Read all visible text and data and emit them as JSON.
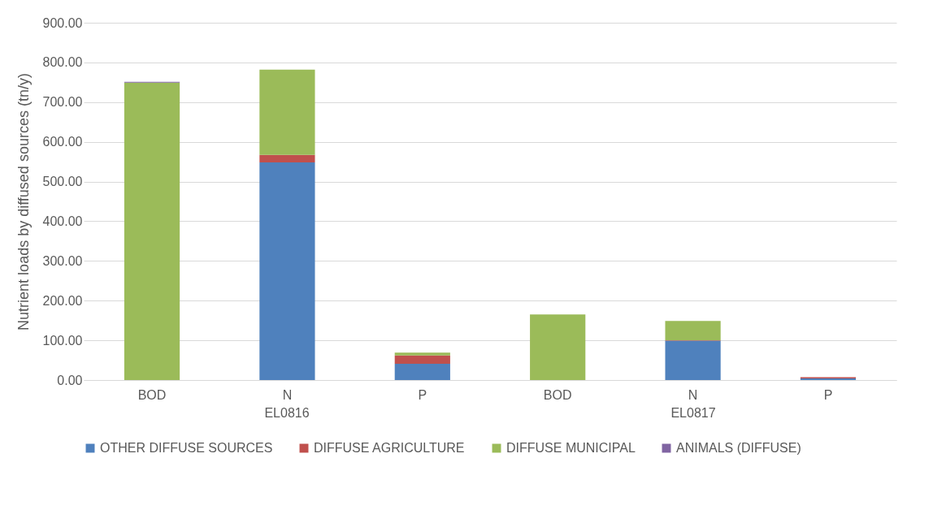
{
  "chart_data": {
    "type": "bar",
    "stacked": true,
    "ylabel": "Nutrient loads by diffused sources (tn/y)",
    "categories": [
      "BOD",
      "N",
      "P",
      "BOD",
      "N",
      "P"
    ],
    "series": [
      {
        "name": "OTHER DIFFUSE SOURCES",
        "color": "#4f81bd",
        "values": [
          0,
          548,
          41,
          0,
          99,
          4
        ]
      },
      {
        "name": "DIFFUSE AGRICULTURE",
        "color": "#c0504d",
        "values": [
          0,
          19,
          21,
          0,
          1,
          3
        ]
      },
      {
        "name": "DIFFUSE MUNICIPAL",
        "color": "#9bbb59",
        "values": [
          749,
          215,
          7,
          165,
          49,
          0
        ]
      },
      {
        "name": "ANIMALS (DIFFUSE)",
        "color": "#8064a2",
        "values": [
          2,
          null,
          null,
          0,
          0,
          null
        ]
      }
    ],
    "ylim": [
      0,
      900
    ],
    "yticks": [
      {
        "value": 0,
        "label": "0.00"
      },
      {
        "value": 100,
        "label": "100.00"
      },
      {
        "value": 200,
        "label": "200.00"
      },
      {
        "value": 300,
        "label": "300.00"
      },
      {
        "value": 400,
        "label": "400.00"
      },
      {
        "value": 500,
        "label": "500.00"
      },
      {
        "value": 600,
        "label": "600.00"
      },
      {
        "value": 700,
        "label": "700.00"
      },
      {
        "value": 800,
        "label": "800.00"
      },
      {
        "value": 900,
        "label": "900.00"
      }
    ],
    "annotations": [
      "EL0816",
      "EL0817"
    ],
    "grid": "y",
    "legend": "bottom"
  }
}
